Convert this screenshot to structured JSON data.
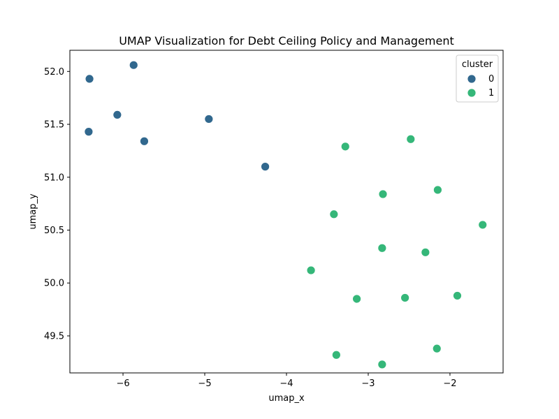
{
  "chart_data": {
    "type": "scatter",
    "title": "UMAP Visualization for Debt Ceiling Policy and Management",
    "xlabel": "umap_x",
    "ylabel": "umap_y",
    "xlim": [
      -6.65,
      -1.35
    ],
    "ylim": [
      49.15,
      52.2
    ],
    "xticks": [
      -6,
      -5,
      -4,
      -3,
      -2
    ],
    "xtick_labels": [
      "−6",
      "−5",
      "−4",
      "−3",
      "−2"
    ],
    "yticks": [
      49.5,
      50.0,
      50.5,
      51.0,
      51.5,
      52.0
    ],
    "ytick_labels": [
      "49.5",
      "50.0",
      "50.5",
      "51.0",
      "51.5",
      "52.0"
    ],
    "grid": false,
    "legend": {
      "title": "cluster",
      "placement": "top-right"
    },
    "series": [
      {
        "name": "0",
        "color": "#31688e",
        "points": [
          {
            "x": -6.41,
            "y": 51.93
          },
          {
            "x": -5.87,
            "y": 52.06
          },
          {
            "x": -6.07,
            "y": 51.59
          },
          {
            "x": -6.42,
            "y": 51.43
          },
          {
            "x": -5.74,
            "y": 51.34
          },
          {
            "x": -4.95,
            "y": 51.55
          },
          {
            "x": -4.26,
            "y": 51.1
          }
        ]
      },
      {
        "name": "1",
        "color": "#35b779",
        "points": [
          {
            "x": -2.48,
            "y": 51.36
          },
          {
            "x": -3.28,
            "y": 51.29
          },
          {
            "x": -2.15,
            "y": 50.88
          },
          {
            "x": -2.82,
            "y": 50.84
          },
          {
            "x": -3.42,
            "y": 50.65
          },
          {
            "x": -1.6,
            "y": 50.55
          },
          {
            "x": -2.83,
            "y": 50.33
          },
          {
            "x": -2.3,
            "y": 50.29
          },
          {
            "x": -3.7,
            "y": 50.12
          },
          {
            "x": -1.91,
            "y": 49.88
          },
          {
            "x": -2.55,
            "y": 49.86
          },
          {
            "x": -3.14,
            "y": 49.85
          },
          {
            "x": -2.16,
            "y": 49.38
          },
          {
            "x": -3.39,
            "y": 49.32
          },
          {
            "x": -2.83,
            "y": 49.23
          }
        ]
      }
    ]
  }
}
